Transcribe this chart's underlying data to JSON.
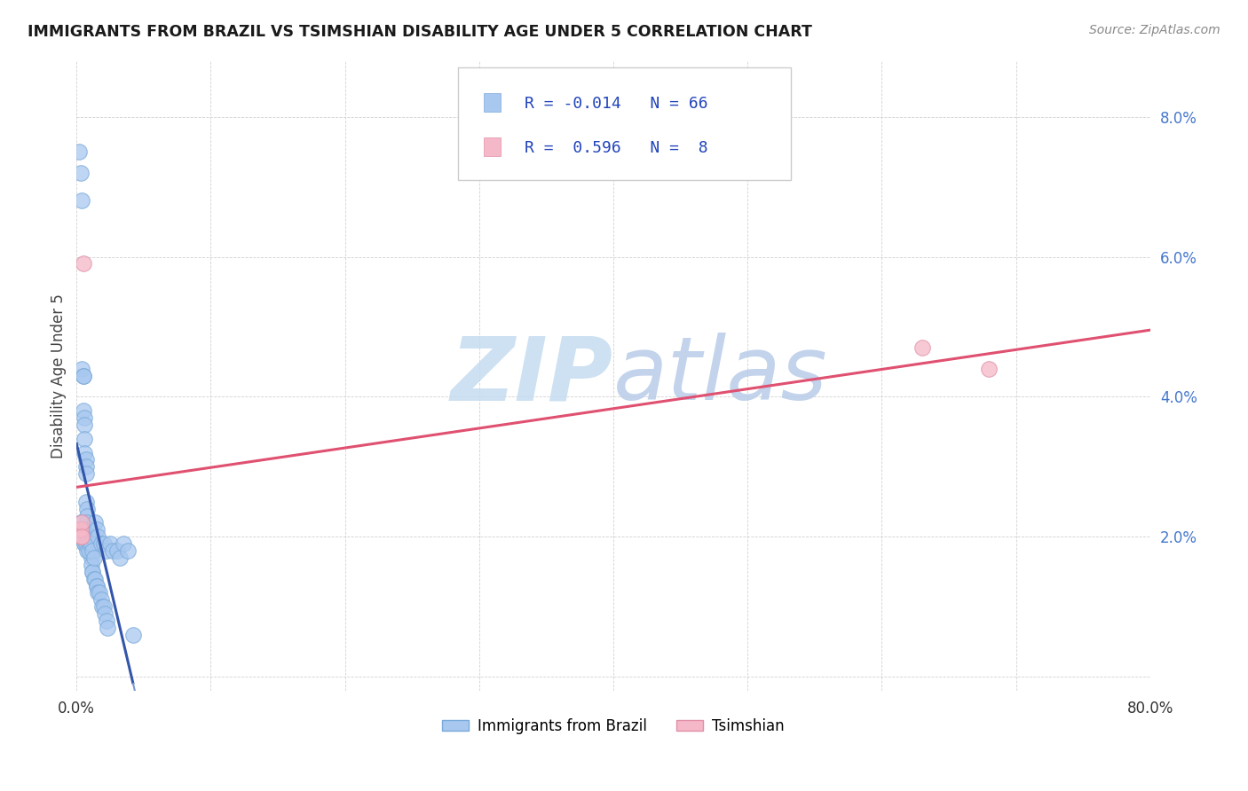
{
  "title": "IMMIGRANTS FROM BRAZIL VS TSIMSHIAN DISABILITY AGE UNDER 5 CORRELATION CHART",
  "source": "Source: ZipAtlas.com",
  "ylabel": "Disability Age Under 5",
  "legend_label1": "Immigrants from Brazil",
  "legend_label2": "Tsimshian",
  "r1": "-0.014",
  "n1": "66",
  "r2": "0.596",
  "n2": "8",
  "xlim": [
    0.0,
    0.8
  ],
  "ylim": [
    -0.002,
    0.088
  ],
  "yticks": [
    0.0,
    0.02,
    0.04,
    0.06,
    0.08
  ],
  "ytick_labels": [
    "",
    "2.0%",
    "4.0%",
    "6.0%",
    "8.0%"
  ],
  "xticks": [
    0.0,
    0.1,
    0.2,
    0.3,
    0.4,
    0.5,
    0.6,
    0.7,
    0.8
  ],
  "xtick_labels": [
    "0.0%",
    "",
    "",
    "",
    "",
    "",
    "",
    "",
    "80.0%"
  ],
  "brazil_x": [
    0.002,
    0.003,
    0.004,
    0.004,
    0.005,
    0.005,
    0.005,
    0.006,
    0.006,
    0.006,
    0.006,
    0.007,
    0.007,
    0.007,
    0.007,
    0.008,
    0.008,
    0.008,
    0.009,
    0.009,
    0.009,
    0.01,
    0.01,
    0.01,
    0.011,
    0.011,
    0.012,
    0.012,
    0.013,
    0.014,
    0.015,
    0.015,
    0.016,
    0.017,
    0.018,
    0.019,
    0.02,
    0.021,
    0.022,
    0.023,
    0.003,
    0.004,
    0.005,
    0.005,
    0.006,
    0.006,
    0.007,
    0.008,
    0.009,
    0.01,
    0.011,
    0.012,
    0.013,
    0.014,
    0.015,
    0.016,
    0.018,
    0.02,
    0.022,
    0.025,
    0.027,
    0.03,
    0.032,
    0.035,
    0.038,
    0.042
  ],
  "brazil_y": [
    0.075,
    0.072,
    0.068,
    0.044,
    0.043,
    0.043,
    0.038,
    0.037,
    0.036,
    0.034,
    0.032,
    0.031,
    0.03,
    0.029,
    0.025,
    0.024,
    0.023,
    0.022,
    0.021,
    0.02,
    0.02,
    0.019,
    0.018,
    0.018,
    0.017,
    0.016,
    0.015,
    0.015,
    0.014,
    0.014,
    0.013,
    0.013,
    0.012,
    0.012,
    0.011,
    0.01,
    0.01,
    0.009,
    0.008,
    0.007,
    0.022,
    0.021,
    0.021,
    0.02,
    0.019,
    0.019,
    0.019,
    0.018,
    0.018,
    0.019,
    0.019,
    0.018,
    0.017,
    0.022,
    0.021,
    0.02,
    0.019,
    0.019,
    0.018,
    0.019,
    0.018,
    0.018,
    0.017,
    0.019,
    0.018,
    0.006
  ],
  "tsimshian_x": [
    0.002,
    0.003,
    0.003,
    0.004,
    0.004,
    0.005,
    0.63,
    0.68
  ],
  "tsimshian_y": [
    0.021,
    0.02,
    0.021,
    0.022,
    0.02,
    0.059,
    0.047,
    0.044
  ],
  "color_brazil": "#A8C8F0",
  "color_brazil_edge": "#7AAAD8",
  "color_tsimshian": "#F5B8C8",
  "color_tsimshian_edge": "#E090A8",
  "color_brazil_line_solid": "#3355AA",
  "color_brazil_line_dash": "#7799CC",
  "color_tsimshian_line": "#E05070",
  "background": "#ffffff",
  "watermark_zip": "ZIP",
  "watermark_atlas": "atlas",
  "watermark_color_zip": "#C8E0F5",
  "watermark_color_atlas": "#C8D8F0"
}
